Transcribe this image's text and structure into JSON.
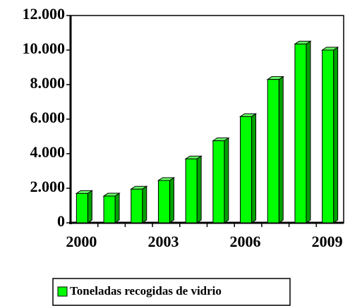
{
  "chart_data": {
    "type": "bar",
    "categories": [
      "2000",
      null,
      null,
      "2003",
      null,
      null,
      "2006",
      null,
      null,
      "2009"
    ],
    "series": [
      {
        "name": "Toneladas recogidas de vidrio",
        "color": "#00ff00",
        "values": [
          1700,
          1550,
          1950,
          2450,
          3700,
          4750,
          6150,
          8300,
          10350,
          10000
        ]
      }
    ],
    "ylim": [
      0,
      12000
    ],
    "yticks": [
      0,
      {
        "value": 2000,
        "label": "2.000"
      },
      {
        "value": 4000,
        "label": "4.000"
      },
      {
        "value": 6000,
        "label": "6.000"
      },
      {
        "value": 8000,
        "label": "8.000"
      },
      {
        "value": 10000,
        "label": "10.000"
      },
      {
        "value": 12000,
        "label": "12.000"
      }
    ],
    "legend": "bottom"
  }
}
